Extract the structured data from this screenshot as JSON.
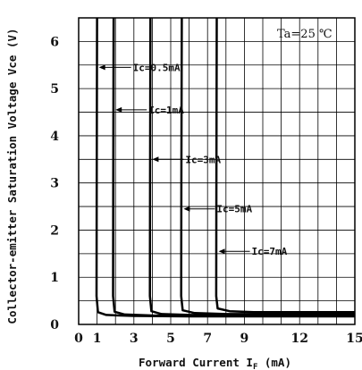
{
  "chart_data": {
    "type": "line",
    "title": "",
    "xlabel": "Forward Current I",
    "xlabel_sub": "F",
    "xlabel_unit": " (mA)",
    "ylabel": "Collector-emitter Saturation  Voltage Vce (V)",
    "xlim": [
      0,
      15
    ],
    "ylim": [
      0,
      6.5
    ],
    "x_ticks": [
      {
        "value": 0,
        "label": "0"
      },
      {
        "value": 1,
        "label": "1"
      },
      {
        "value": 3,
        "label": "3"
      },
      {
        "value": 5,
        "label": "5"
      },
      {
        "value": 7,
        "label": "7"
      },
      {
        "value": 9,
        "label": "9"
      },
      {
        "value": 12,
        "label": "12"
      },
      {
        "value": 15,
        "label": "15"
      }
    ],
    "y_ticks": [
      {
        "value": 0,
        "label": "0"
      },
      {
        "value": 1,
        "label": "1"
      },
      {
        "value": 2,
        "label": "2"
      },
      {
        "value": 3,
        "label": "3"
      },
      {
        "value": 4,
        "label": "4"
      },
      {
        "value": 5,
        "label": "5"
      },
      {
        "value": 6,
        "label": "6"
      }
    ],
    "grid": true,
    "condition": "Ta=25 ℃",
    "series": [
      {
        "name": "Ic=0.5mA",
        "x": [
          1.0,
          0.98,
          0.97,
          1.05,
          1.5,
          3,
          6,
          10,
          15
        ],
        "y": [
          6.5,
          3.0,
          0.6,
          0.26,
          0.2,
          0.18,
          0.17,
          0.17,
          0.17
        ]
      },
      {
        "name": "Ic=1mA",
        "x": [
          1.9,
          1.88,
          1.87,
          1.95,
          2.5,
          4,
          7,
          11,
          15
        ],
        "y": [
          6.5,
          3.0,
          0.6,
          0.27,
          0.21,
          0.19,
          0.18,
          0.18,
          0.18
        ]
      },
      {
        "name": "Ic=3mA",
        "x": [
          3.9,
          3.88,
          3.87,
          3.95,
          4.5,
          6,
          9,
          12,
          15
        ],
        "y": [
          6.5,
          3.0,
          0.6,
          0.28,
          0.22,
          0.2,
          0.2,
          0.2,
          0.2
        ]
      },
      {
        "name": "Ic=5mA",
        "x": [
          5.6,
          5.58,
          5.57,
          5.65,
          6.3,
          8,
          10,
          13,
          15
        ],
        "y": [
          6.5,
          3.0,
          0.6,
          0.3,
          0.24,
          0.22,
          0.22,
          0.22,
          0.22
        ]
      },
      {
        "name": "Ic=7mA",
        "x": [
          7.5,
          7.48,
          7.47,
          7.55,
          8.2,
          9.5,
          11.5,
          13.5,
          15
        ],
        "y": [
          6.5,
          3.0,
          0.6,
          0.34,
          0.28,
          0.26,
          0.26,
          0.26,
          0.26
        ]
      }
    ],
    "annotations": [
      {
        "text": "Ic=0.5mA",
        "series": 0,
        "y": 5.45,
        "tip_x": 1.1
      },
      {
        "text": "Ic=1mA",
        "series": 1,
        "y": 4.55,
        "tip_x": 2.0
      },
      {
        "text": "Ic=3mA",
        "series": 2,
        "y": 3.5,
        "tip_x": 4.0
      },
      {
        "text": "Ic=5mA",
        "series": 3,
        "y": 2.45,
        "tip_x": 5.7
      },
      {
        "text": "Ic=7mA",
        "series": 4,
        "y": 1.55,
        "tip_x": 7.6
      }
    ]
  }
}
